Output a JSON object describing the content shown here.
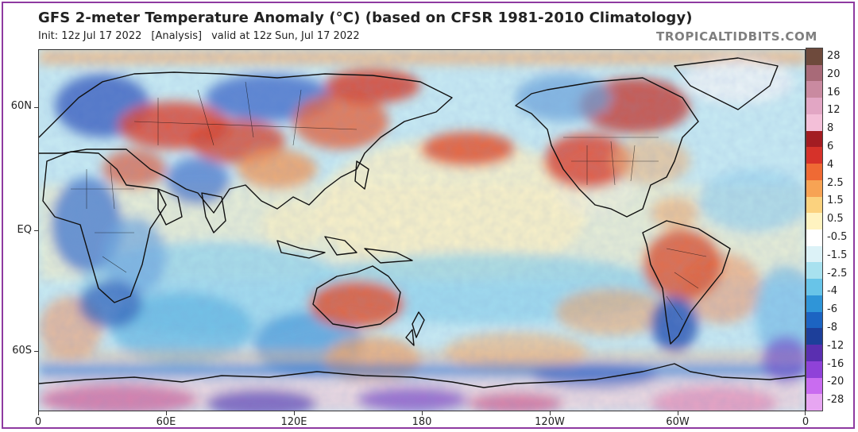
{
  "header": {
    "title": "GFS 2-meter Temperature Anomaly (°C) (based on CFSR 1981-2010 Climatology)",
    "init": "Init: 12z Jul 17 2022",
    "analysis": "[Analysis]",
    "valid": "valid at 12z Sun, Jul 17 2022",
    "brand": "TROPICALTIDBITS.COM"
  },
  "axes": {
    "y_labels": [
      "60N",
      "EQ",
      "60S"
    ],
    "x_labels": [
      "0",
      "60E",
      "120E",
      "180",
      "120W",
      "60W",
      "0"
    ]
  },
  "colorbar": {
    "labels": [
      "28",
      "20",
      "16",
      "12",
      "8",
      "6",
      "4",
      "2.5",
      "1.5",
      "0.5",
      "-0.5",
      "-1.5",
      "-2.5",
      "-4",
      "-6",
      "-8",
      "-12",
      "-16",
      "-20",
      "-28"
    ],
    "colors": [
      "#6e4a3c",
      "#a86a78",
      "#c98aa0",
      "#e2a6c4",
      "#f3bfd8",
      "#a31c22",
      "#d6322a",
      "#ef6a34",
      "#f7a354",
      "#fbd27e",
      "#fff3c0",
      "#ffffff",
      "#dcf2f7",
      "#a8e1ef",
      "#68c4e8",
      "#2f95d8",
      "#1c64c2",
      "#1d3f9a",
      "#5a2fb0",
      "#8f42d8",
      "#c96cf0",
      "#e7a6f2"
    ]
  }
}
